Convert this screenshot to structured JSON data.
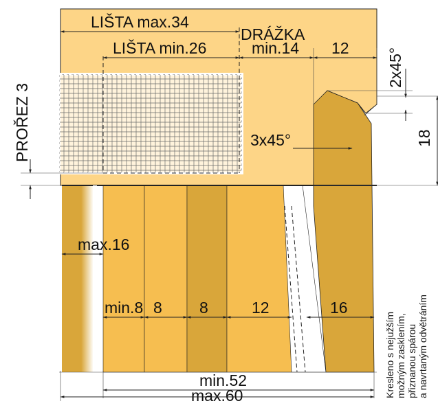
{
  "colors": {
    "frame": "#FDD587",
    "wood_dark": "#D9A63A",
    "wood_light": "#F6BE50",
    "mesh_bg": "#FFF3DC",
    "outline": "#222222",
    "white": "#FFFFFF"
  },
  "labels": {
    "lista_max": "LIŠTA max.34",
    "lista_min": "LIŠTA min.26",
    "drazka": "DRÁŽKA",
    "drazka_min": "min.14",
    "dim_12_top": "12",
    "chamfer_2x45": "2x45°",
    "dim_18": "18",
    "chamfer_3x45": "3x45°",
    "prorez": "PROŘEZ 3",
    "max16": "max.16",
    "min8": "min.8",
    "dim_8a": "8",
    "dim_8b": "8",
    "dim_12": "12",
    "dim_16": "16",
    "min52": "min.52",
    "max60": "max.60"
  },
  "note": {
    "lines": [
      "Kresleno s nejužším",
      "možným zasklením,",
      "přiznanou spárou",
      "a navrtaným odvětráním"
    ]
  }
}
